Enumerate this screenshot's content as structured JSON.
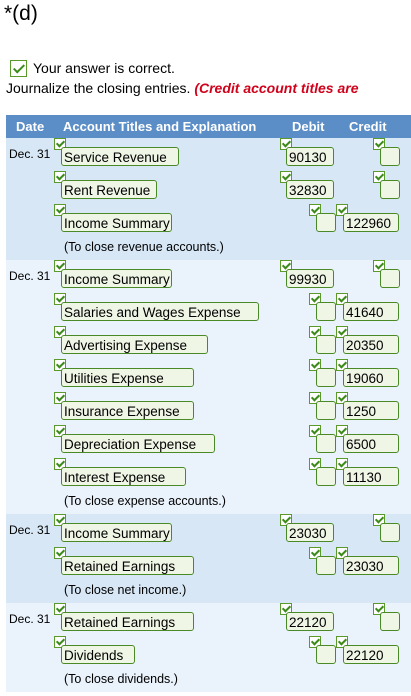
{
  "part_label": "*(d)",
  "status_text": "Your answer is correct.",
  "instruction_text": "Journalize the closing entries.",
  "instruction_note": "(Credit account titles are",
  "table": {
    "headers": {
      "date": "Date",
      "account": "Account Titles and Explanation",
      "debit": "Debit",
      "credit": "Credit"
    },
    "entries": [
      {
        "date": "Dec. 31",
        "lines": [
          {
            "account": "Service Revenue",
            "debit": "90130",
            "credit": ""
          },
          {
            "account": "Rent Revenue",
            "debit": "32830",
            "credit": ""
          },
          {
            "account": "Income Summary",
            "debit": "",
            "credit": "122960"
          }
        ],
        "note": "(To close revenue accounts.)"
      },
      {
        "date": "Dec. 31",
        "lines": [
          {
            "account": "Income Summary",
            "debit": "99930",
            "credit": ""
          },
          {
            "account": "Salaries and Wages Expense",
            "debit": "",
            "credit": "41640"
          },
          {
            "account": "Advertising Expense",
            "debit": "",
            "credit": "20350"
          },
          {
            "account": "Utilities Expense",
            "debit": "",
            "credit": "19060"
          },
          {
            "account": "Insurance Expense",
            "debit": "",
            "credit": "1250"
          },
          {
            "account": "Depreciation Expense",
            "debit": "",
            "credit": "6500"
          },
          {
            "account": "Interest Expense",
            "debit": "",
            "credit": "11130"
          }
        ],
        "note": "(To close expense accounts.)"
      },
      {
        "date": "Dec. 31",
        "lines": [
          {
            "account": "Income Summary",
            "debit": "23030",
            "credit": ""
          },
          {
            "account": "Retained Earnings",
            "debit": "",
            "credit": "23030"
          }
        ],
        "note": "(To close net income.)"
      },
      {
        "date": "Dec. 31",
        "lines": [
          {
            "account": "Retained Earnings",
            "debit": "22120",
            "credit": ""
          },
          {
            "account": "Dividends",
            "debit": "",
            "credit": "22120"
          }
        ],
        "note": "(To close dividends.)"
      }
    ]
  }
}
